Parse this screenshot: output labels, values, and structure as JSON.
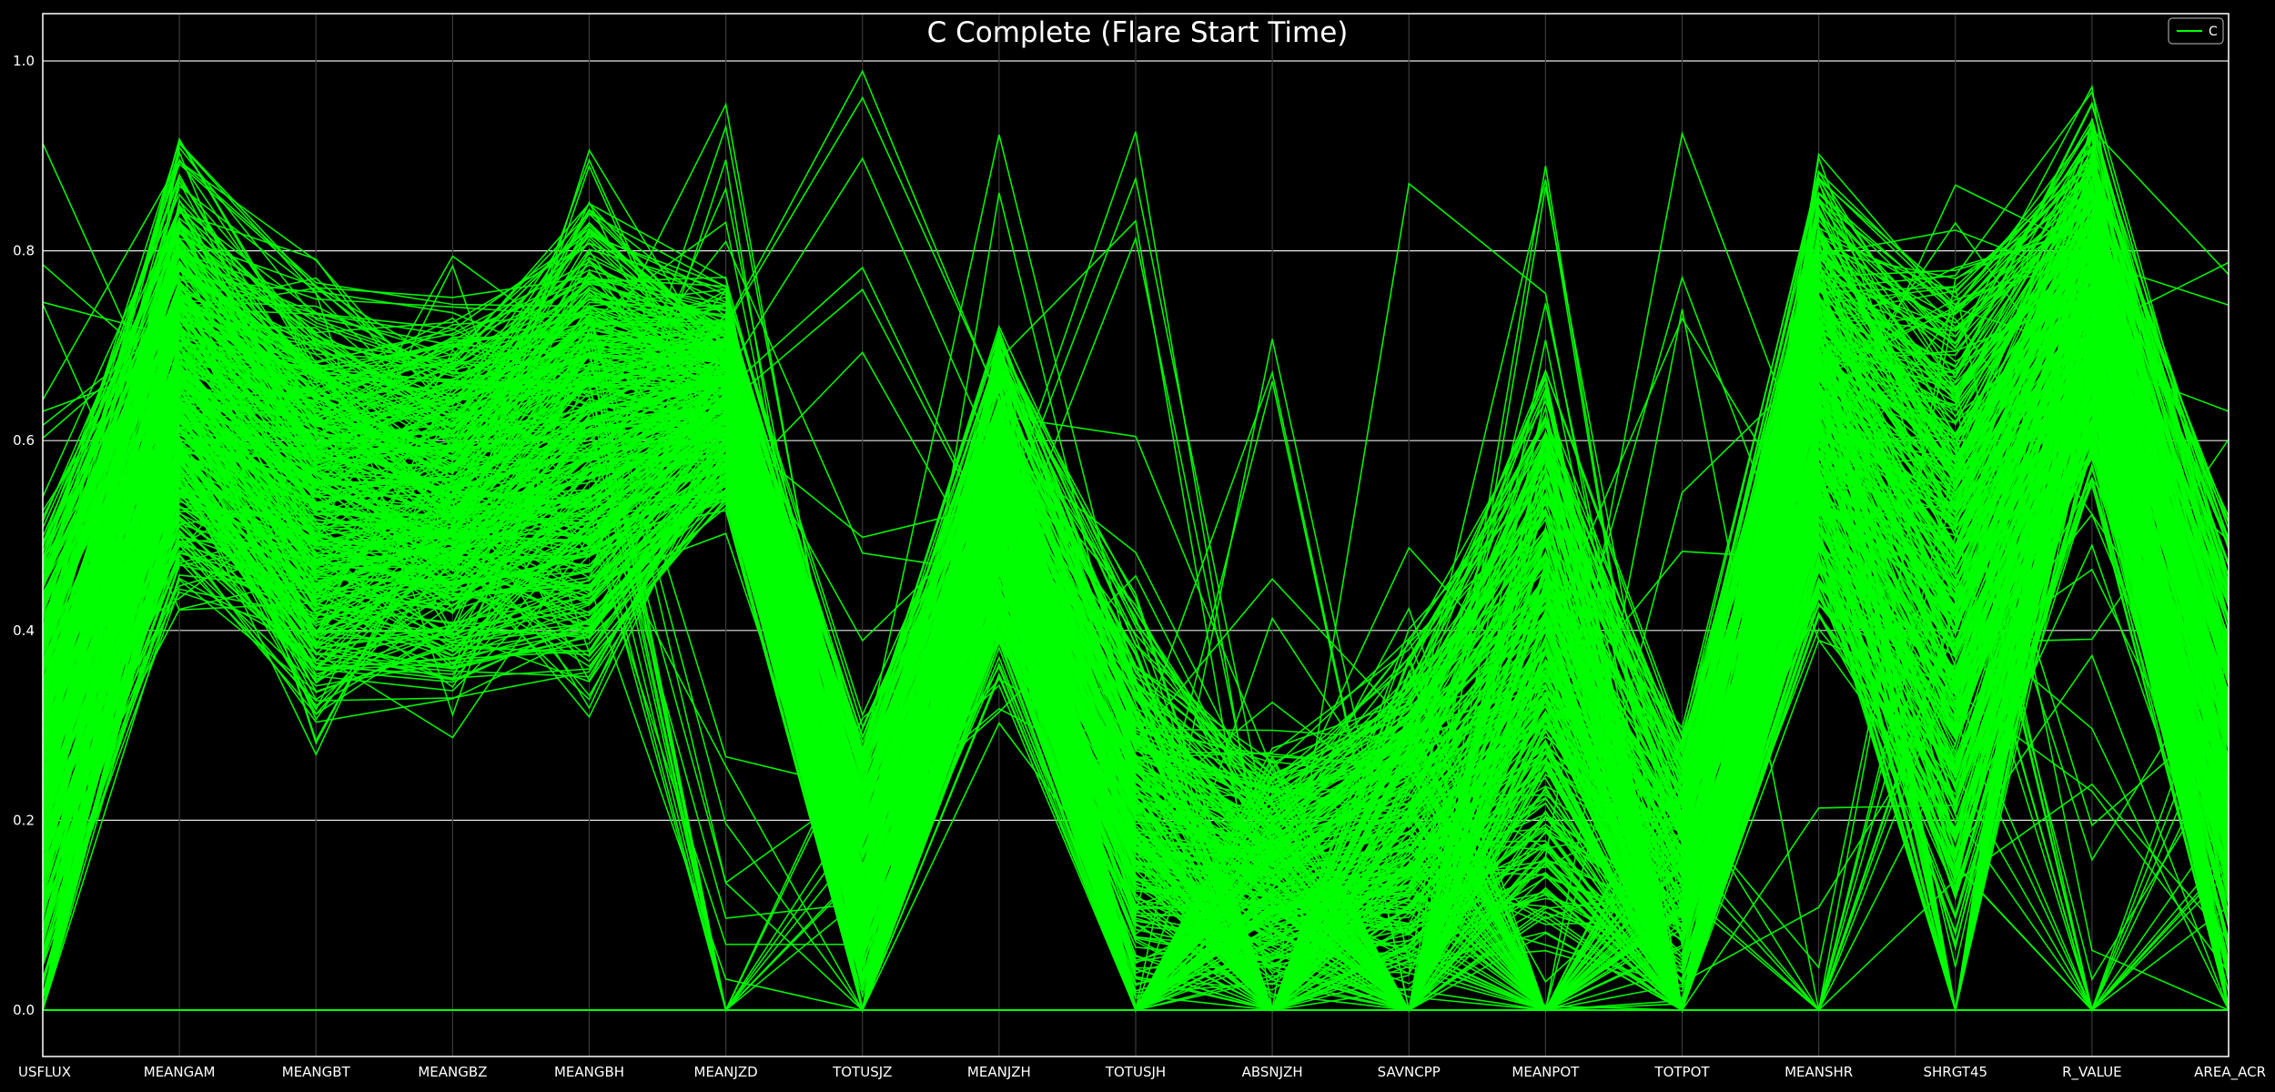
{
  "chart_data": {
    "type": "line",
    "subtype": "parallel-coordinates",
    "title": "C Complete (Flare Start Time)",
    "xlabel": "",
    "ylabel": "",
    "ylim": [
      0,
      1
    ],
    "yticks": [
      "0.0",
      "0.2",
      "0.4",
      "0.6",
      "0.8",
      "1.0"
    ],
    "grid": true,
    "background": "#000000",
    "line_color": "#00ff00",
    "legend": {
      "location": "upper-right",
      "entries": [
        "C"
      ]
    },
    "categories": [
      "USFLUX",
      "MEANGAM",
      "MEANGBT",
      "MEANGBZ",
      "MEANGBH",
      "MEANJZD",
      "TOTUSJZ",
      "MEANJZH",
      "TOTUSJH",
      "ABSNJZH",
      "SAVNCPP",
      "MEANPOT",
      "TOTPOT",
      "MEANSHR",
      "SHRGT45",
      "R_VALUE",
      "AREA_ACR"
    ],
    "series": [
      {
        "name": "C",
        "line_count_approx": 420,
        "value_ranges_per_axis": [
          [
            0.0,
            0.97
          ],
          [
            0.39,
            0.95
          ],
          [
            0.25,
            0.84
          ],
          [
            0.27,
            0.82
          ],
          [
            0.3,
            0.92
          ],
          [
            0.0,
            1.0
          ],
          [
            0.0,
            1.0
          ],
          [
            0.28,
            0.93
          ],
          [
            0.0,
            0.97
          ],
          [
            0.0,
            0.71
          ],
          [
            0.0,
            0.91
          ],
          [
            0.0,
            0.91
          ],
          [
            0.0,
            0.93
          ],
          [
            0.0,
            0.94
          ],
          [
            0.0,
            0.88
          ],
          [
            0.0,
            0.99
          ],
          [
            0.0,
            0.91
          ]
        ]
      }
    ]
  }
}
